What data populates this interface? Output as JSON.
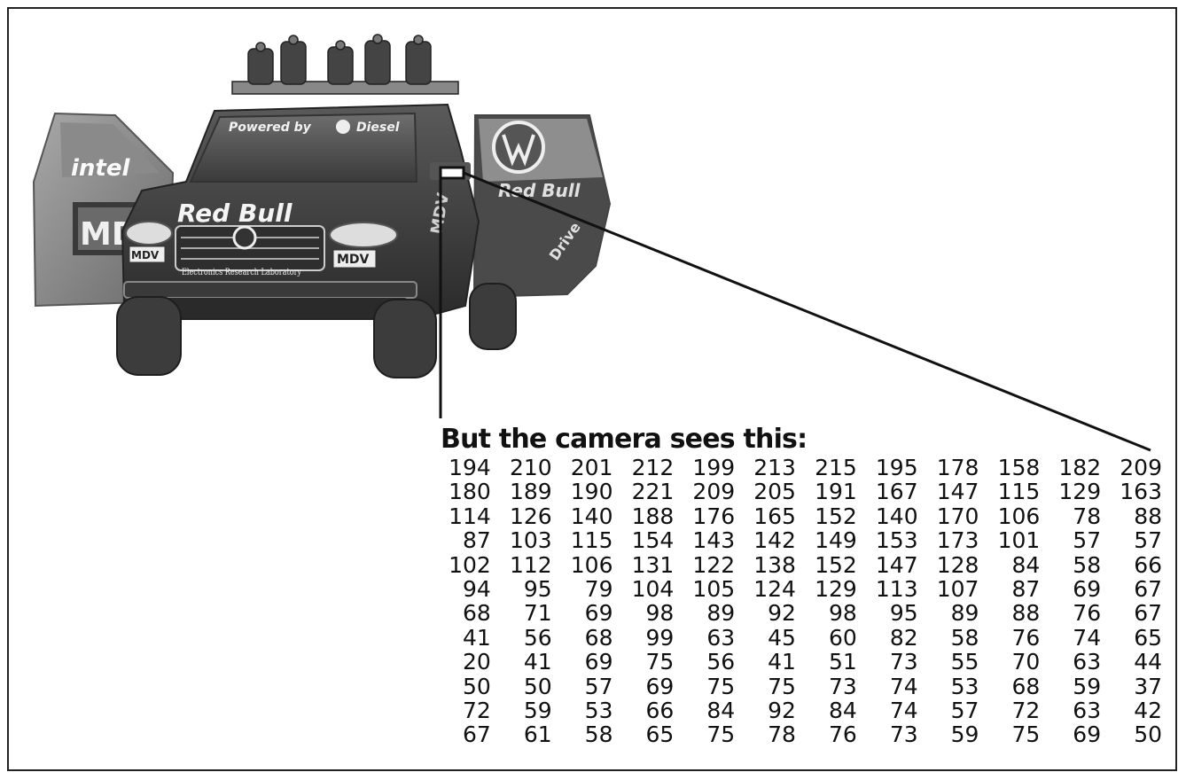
{
  "vehicle_labels": {
    "powered": "Powered by",
    "diesel": "Diesel",
    "redbull_hood": "Red Bull",
    "redbull_door": "Red Bull",
    "intel": "intel",
    "mdv_door": "MD",
    "mdv_left": "MDV",
    "mdv_right": "MDV",
    "lab": "Electronics Research Laboratory",
    "drive": "Drive",
    "side_md": "MDV"
  },
  "caption": "But the camera sees this:",
  "pixel_matrix": [
    [
      194,
      210,
      201,
      212,
      199,
      213,
      215,
      195,
      178,
      158,
      182,
      209
    ],
    [
      180,
      189,
      190,
      221,
      209,
      205,
      191,
      167,
      147,
      115,
      129,
      163
    ],
    [
      114,
      126,
      140,
      188,
      176,
      165,
      152,
      140,
      170,
      106,
      78,
      88
    ],
    [
      87,
      103,
      115,
      154,
      143,
      142,
      149,
      153,
      173,
      101,
      57,
      57
    ],
    [
      102,
      112,
      106,
      131,
      122,
      138,
      152,
      147,
      128,
      84,
      58,
      66
    ],
    [
      94,
      95,
      79,
      104,
      105,
      124,
      129,
      113,
      107,
      87,
      69,
      67
    ],
    [
      68,
      71,
      69,
      98,
      89,
      92,
      98,
      95,
      89,
      88,
      76,
      67
    ],
    [
      41,
      56,
      68,
      99,
      63,
      45,
      60,
      82,
      58,
      76,
      74,
      65
    ],
    [
      20,
      41,
      69,
      75,
      56,
      41,
      51,
      73,
      55,
      70,
      63,
      44
    ],
    [
      50,
      50,
      57,
      69,
      75,
      75,
      73,
      74,
      53,
      68,
      59,
      37
    ],
    [
      72,
      59,
      53,
      66,
      84,
      92,
      84,
      74,
      57,
      72,
      63,
      42
    ],
    [
      67,
      61,
      58,
      65,
      75,
      78,
      76,
      73,
      59,
      75,
      69,
      50
    ]
  ]
}
